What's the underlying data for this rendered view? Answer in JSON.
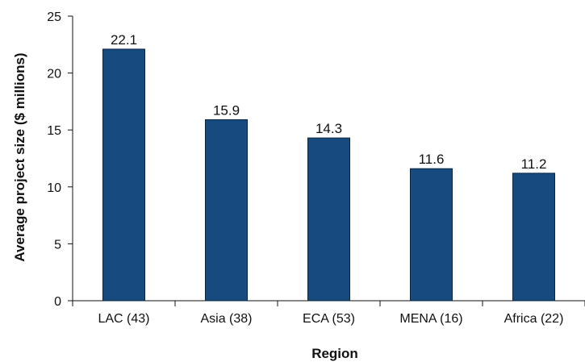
{
  "chart_data": {
    "type": "bar",
    "title": "",
    "xlabel": "Region",
    "ylabel": "Average project size ($ millions)",
    "categories": [
      "LAC (43)",
      "Asia (38)",
      "ECA (53)",
      "MENA (16)",
      "Africa (22)"
    ],
    "values": [
      22.1,
      15.9,
      14.3,
      11.6,
      11.2
    ],
    "value_labels": [
      "22.1",
      "15.9",
      "14.3",
      "11.6",
      "11.2"
    ],
    "ylim": [
      0,
      25
    ],
    "yticks": [
      0,
      5,
      10,
      15,
      20,
      25
    ],
    "ytick_labels": [
      "0",
      "5",
      "10",
      "15",
      "20",
      "25"
    ],
    "bar_color": "#174a7e",
    "grid": false
  }
}
